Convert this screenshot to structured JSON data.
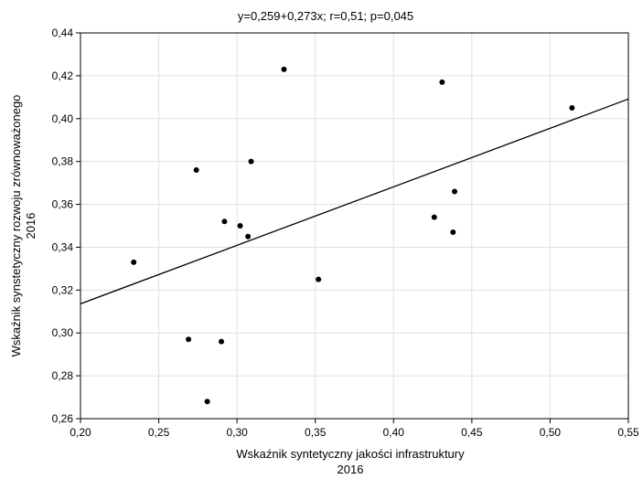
{
  "chart_data": {
    "type": "scatter",
    "title": "y=0,259+0,273x; r=0,51; p=0,045",
    "xlabel_line1": "Wskaźnik syntetyczny jakości infrastruktury",
    "xlabel_line2": "2016",
    "ylabel_line1": "Wskaźnik synstetyczny rozwoju zrównoważonego",
    "ylabel_line2": "2016",
    "xlim": [
      0.2,
      0.55
    ],
    "ylim": [
      0.26,
      0.44
    ],
    "x_ticks": [
      0.2,
      0.25,
      0.3,
      0.35,
      0.4,
      0.45,
      0.5,
      0.55
    ],
    "x_tick_labels": [
      "0,20",
      "0,25",
      "0,30",
      "0,35",
      "0,40",
      "0,45",
      "0,50",
      "0,55"
    ],
    "y_ticks": [
      0.26,
      0.28,
      0.3,
      0.32,
      0.34,
      0.36,
      0.38,
      0.4,
      0.42,
      0.44
    ],
    "y_tick_labels": [
      "0,26",
      "0,28",
      "0,30",
      "0,32",
      "0,34",
      "0,36",
      "0,38",
      "0,40",
      "0,42",
      "0,44"
    ],
    "grid": true,
    "regression": {
      "intercept": 0.259,
      "slope": 0.273
    },
    "points": [
      {
        "x": 0.234,
        "y": 0.333
      },
      {
        "x": 0.269,
        "y": 0.297
      },
      {
        "x": 0.274,
        "y": 0.376
      },
      {
        "x": 0.281,
        "y": 0.268
      },
      {
        "x": 0.29,
        "y": 0.296
      },
      {
        "x": 0.292,
        "y": 0.352
      },
      {
        "x": 0.302,
        "y": 0.35
      },
      {
        "x": 0.307,
        "y": 0.345
      },
      {
        "x": 0.309,
        "y": 0.38
      },
      {
        "x": 0.33,
        "y": 0.423
      },
      {
        "x": 0.352,
        "y": 0.325
      },
      {
        "x": 0.426,
        "y": 0.354
      },
      {
        "x": 0.431,
        "y": 0.417
      },
      {
        "x": 0.438,
        "y": 0.347
      },
      {
        "x": 0.439,
        "y": 0.366
      },
      {
        "x": 0.514,
        "y": 0.405
      }
    ],
    "colors": {
      "points": "#000000",
      "line": "#000000",
      "grid": "#e0e0e0",
      "frame": "#000000"
    }
  }
}
